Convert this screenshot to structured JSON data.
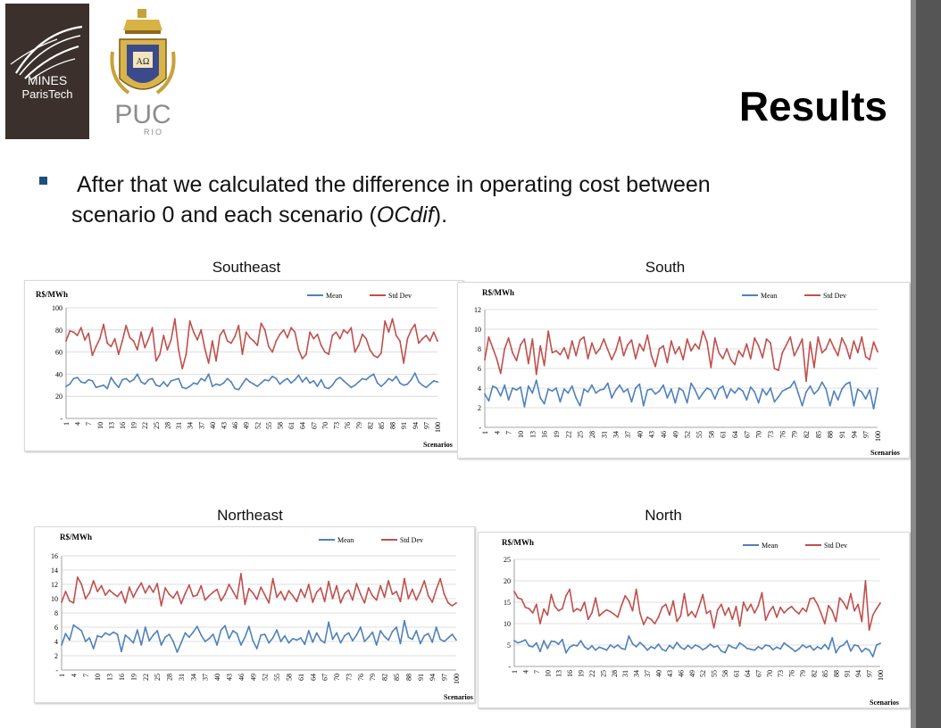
{
  "slide": {
    "title": "Results",
    "bullet_line1": "After that we calculated the difference in operating cost between",
    "bullet_line2_pre": "scenario 0 and each scenario (",
    "bullet_line2_em": "OCdif",
    "bullet_line2_post": ")."
  },
  "logos": {
    "mines_line1": "MINES",
    "mines_line2": "ParisTech",
    "puc_main": "PUC",
    "puc_sub": "RIO",
    "puc_shield_letters": "ΑΩ"
  },
  "colors": {
    "mean": "#4f81bd",
    "std": "#c0504d",
    "grid": "#d4d4d4",
    "logo_bg": "#3b302c"
  },
  "chart_data": [
    {
      "id": "southeast",
      "region": "Southeast",
      "type": "line",
      "ylabel": "R$/MWh",
      "xlabel": "Scenarios",
      "x_range": [
        1,
        100
      ],
      "ylim": [
        0,
        100
      ],
      "yticks": [
        "-",
        "20",
        "40",
        "60",
        "80",
        "100"
      ],
      "ytick_values": [
        0,
        20,
        40,
        60,
        80,
        100
      ],
      "xticks": [
        "1",
        "4",
        "7",
        "10",
        "13",
        "16",
        "19",
        "22",
        "25",
        "28",
        "31",
        "34",
        "37",
        "40",
        "43",
        "46",
        "49",
        "52",
        "55",
        "58",
        "61",
        "64",
        "67",
        "70",
        "73",
        "76",
        "79",
        "82",
        "85",
        "88",
        "91",
        "94",
        "97",
        "100"
      ],
      "grid": "horizontal",
      "legend_position": "top-right",
      "series": [
        {
          "name": "Mean",
          "color": "#4f81bd",
          "values": [
            29,
            31,
            36,
            37,
            33,
            32,
            35,
            34,
            28,
            29,
            30,
            27,
            37,
            32,
            28,
            35,
            36,
            33,
            35,
            40,
            33,
            31,
            35,
            36,
            30,
            29,
            33,
            29,
            34,
            35,
            36,
            28,
            27,
            29,
            32,
            31,
            36,
            34,
            40,
            29,
            31,
            30,
            32,
            36,
            33,
            27,
            26,
            31,
            36,
            33,
            31,
            29,
            32,
            35,
            34,
            38,
            36,
            31,
            34,
            36,
            32,
            35,
            39,
            33,
            37,
            32,
            34,
            29,
            35,
            28,
            27,
            30,
            35,
            37,
            34,
            31,
            28,
            30,
            33,
            36,
            35,
            38,
            40,
            32,
            29,
            32,
            36,
            34,
            38,
            32,
            30,
            31,
            35,
            41,
            33,
            30,
            28,
            31,
            34,
            33
          ]
        },
        {
          "name": "Std Dev",
          "color": "#c0504d",
          "values": [
            70,
            79,
            78,
            75,
            82,
            71,
            77,
            57,
            65,
            72,
            85,
            68,
            65,
            72,
            58,
            70,
            84,
            73,
            70,
            62,
            78,
            64,
            72,
            82,
            52,
            58,
            75,
            62,
            71,
            90,
            62,
            45,
            58,
            88,
            78,
            71,
            80,
            63,
            50,
            70,
            52,
            75,
            80,
            70,
            68,
            74,
            84,
            58,
            78,
            73,
            70,
            66,
            86,
            80,
            65,
            60,
            70,
            76,
            80,
            73,
            82,
            78,
            62,
            54,
            58,
            78,
            72,
            76,
            66,
            60,
            58,
            75,
            78,
            72,
            80,
            77,
            82,
            60,
            66,
            76,
            72,
            62,
            57,
            55,
            59,
            88,
            78,
            90,
            75,
            70,
            50,
            72,
            80,
            85,
            68,
            72,
            75,
            70,
            78,
            70
          ]
        }
      ]
    },
    {
      "id": "south",
      "region": "South",
      "type": "line",
      "ylabel": "R$/MWh",
      "xlabel": "Scenarios",
      "x_range": [
        1,
        100
      ],
      "ylim": [
        0,
        12
      ],
      "yticks": [
        "-",
        "2",
        "4",
        "6",
        "8",
        "10",
        "12"
      ],
      "ytick_values": [
        0,
        2,
        4,
        6,
        8,
        10,
        12
      ],
      "xticks": [
        "1",
        "4",
        "7",
        "10",
        "13",
        "16",
        "19",
        "22",
        "25",
        "28",
        "31",
        "34",
        "37",
        "40",
        "43",
        "46",
        "49",
        "52",
        "55",
        "58",
        "61",
        "64",
        "67",
        "70",
        "73",
        "76",
        "79",
        "82",
        "85",
        "88",
        "91",
        "94",
        "97",
        "100"
      ],
      "grid": "horizontal",
      "legend_position": "top-right",
      "series": [
        {
          "name": "Mean",
          "color": "#4f81bd",
          "values": [
            3.4,
            2.7,
            4.2,
            4.0,
            3.2,
            4.3,
            2.8,
            4.0,
            3.8,
            4.1,
            2.1,
            4.2,
            3.5,
            4.8,
            3.0,
            2.4,
            3.9,
            3.7,
            4.0,
            2.6,
            3.9,
            3.5,
            4.2,
            3.0,
            2.2,
            3.9,
            3.6,
            4.3,
            3.5,
            3.8,
            3.9,
            4.5,
            3.0,
            3.8,
            4.3,
            3.6,
            3.9,
            2.6,
            4.0,
            4.4,
            2.2,
            3.8,
            3.9,
            3.4,
            3.7,
            4.3,
            3.0,
            3.9,
            2.5,
            4.0,
            3.7,
            2.5,
            4.5,
            3.8,
            2.9,
            3.5,
            4.0,
            3.8,
            2.9,
            3.9,
            4.2,
            3.0,
            3.9,
            3.5,
            4.0,
            3.7,
            2.8,
            4.1,
            3.6,
            2.5,
            3.9,
            3.3,
            4.0,
            2.6,
            3.1,
            3.7,
            3.9,
            4.1,
            4.7,
            3.5,
            2.2,
            3.6,
            4.2,
            3.4,
            3.8,
            4.6,
            3.9,
            2.2,
            3.7,
            2.8,
            3.9,
            4.4,
            4.6,
            2.2,
            3.9,
            3.6,
            2.9,
            3.8,
            1.9,
            4.0
          ]
        },
        {
          "name": "Std Dev",
          "color": "#c0504d",
          "values": [
            6.9,
            9.2,
            8.1,
            7.0,
            5.5,
            8.0,
            9.1,
            7.6,
            6.8,
            8.4,
            9.0,
            6.5,
            9.0,
            5.4,
            8.3,
            6.3,
            9.8,
            7.6,
            7.8,
            7.4,
            8.1,
            7.0,
            8.8,
            7.3,
            8.9,
            9.2,
            7.0,
            8.6,
            7.5,
            8.0,
            9.0,
            7.9,
            6.9,
            7.8,
            9.2,
            7.3,
            8.4,
            8.9,
            7.0,
            8.5,
            7.8,
            9.4,
            7.3,
            6.2,
            8.0,
            8.3,
            6.6,
            8.8,
            7.5,
            8.2,
            6.9,
            9.0,
            7.8,
            8.5,
            8.0,
            9.8,
            8.7,
            6.1,
            9.1,
            7.6,
            7.0,
            8.0,
            6.9,
            6.4,
            7.8,
            7.2,
            8.5,
            7.0,
            9.1,
            8.3,
            7.1,
            9.0,
            8.6,
            6.0,
            5.8,
            7.6,
            8.4,
            9.2,
            7.3,
            8.1,
            9.0,
            4.7,
            8.7,
            6.1,
            9.2,
            7.6,
            8.0,
            9.0,
            8.1,
            7.3,
            9.1,
            8.3,
            7.0,
            8.8,
            7.6,
            9.2,
            7.2,
            6.9,
            8.7,
            7.7
          ]
        }
      ]
    },
    {
      "id": "northeast",
      "region": "Northeast",
      "type": "line",
      "ylabel": "R$/MWh",
      "xlabel": "Scenarios",
      "x_range": [
        1,
        100
      ],
      "ylim": [
        0,
        16
      ],
      "yticks": [
        "-",
        "2",
        "4",
        "6",
        "8",
        "10",
        "12",
        "14",
        "16"
      ],
      "ytick_values": [
        0,
        2,
        4,
        6,
        8,
        10,
        12,
        14,
        16
      ],
      "xticks": [
        "1",
        "4",
        "7",
        "10",
        "13",
        "16",
        "19",
        "22",
        "25",
        "28",
        "31",
        "34",
        "37",
        "40",
        "43",
        "46",
        "49",
        "52",
        "55",
        "58",
        "61",
        "64",
        "67",
        "70",
        "73",
        "76",
        "79",
        "82",
        "85",
        "88",
        "91",
        "94",
        "97",
        "100"
      ],
      "grid": "horizontal",
      "legend_position": "top-right",
      "series": [
        {
          "name": "Mean",
          "color": "#4f81bd",
          "values": [
            3.5,
            5.1,
            4.2,
            6.3,
            5.9,
            5.5,
            4.0,
            4.5,
            3.0,
            4.8,
            4.6,
            5.2,
            4.9,
            5.3,
            5.0,
            2.6,
            4.9,
            4.4,
            3.8,
            5.6,
            3.5,
            6.0,
            4.1,
            4.9,
            5.5,
            3.5,
            4.6,
            5.0,
            4.0,
            2.5,
            3.8,
            5.2,
            4.6,
            5.3,
            6.1,
            4.9,
            4.0,
            4.4,
            5.0,
            3.5,
            5.6,
            6.2,
            4.4,
            5.5,
            5.1,
            3.5,
            4.6,
            6.1,
            4.1,
            3.0,
            4.9,
            5.0,
            3.8,
            4.5,
            5.6,
            4.0,
            4.8,
            3.8,
            4.4,
            4.2,
            4.5,
            3.6,
            5.5,
            3.9,
            5.2,
            4.2,
            3.8,
            6.7,
            4.3,
            5.2,
            3.8,
            4.8,
            5.2,
            4.1,
            4.9,
            6.0,
            4.0,
            4.6,
            5.3,
            3.5,
            5.5,
            4.7,
            4.2,
            5.4,
            6.0,
            3.7,
            6.9,
            4.6,
            4.3,
            5.5,
            3.7,
            4.8,
            5.1,
            3.9,
            6.0,
            4.3,
            4.0,
            4.5,
            5.0,
            4.2
          ]
        },
        {
          "name": "Std Dev",
          "color": "#c0504d",
          "values": [
            9.5,
            11.0,
            9.7,
            9.4,
            13.0,
            12.0,
            10.0,
            10.8,
            12.5,
            11.0,
            11.8,
            10.5,
            11.2,
            10.7,
            10.3,
            11.0,
            9.4,
            11.6,
            10.2,
            11.3,
            12.2,
            10.8,
            11.8,
            10.9,
            12.1,
            9.0,
            11.5,
            10.6,
            10.1,
            11.0,
            9.3,
            10.7,
            11.9,
            10.3,
            10.5,
            11.8,
            9.8,
            10.4,
            10.9,
            11.3,
            9.7,
            10.6,
            12.0,
            11.0,
            10.0,
            13.5,
            9.2,
            11.4,
            10.8,
            9.9,
            11.6,
            10.5,
            9.4,
            12.8,
            10.2,
            11.0,
            9.8,
            11.1,
            10.4,
            9.6,
            11.3,
            10.2,
            12.0,
            9.5,
            10.9,
            11.5,
            9.6,
            12.4,
            10.0,
            11.8,
            9.4,
            10.7,
            11.2,
            9.8,
            12.1,
            10.6,
            9.4,
            11.5,
            10.4,
            9.8,
            11.8,
            10.2,
            12.5,
            10.6,
            11.0,
            9.6,
            12.8,
            10.0,
            11.3,
            9.8,
            11.0,
            12.5,
            10.4,
            9.5,
            11.3,
            12.8,
            10.6,
            9.4,
            9.0,
            9.4
          ]
        }
      ]
    },
    {
      "id": "north",
      "region": "North",
      "type": "line",
      "ylabel": "R$/MWh",
      "xlabel": "Scenarios",
      "x_range": [
        1,
        100
      ],
      "ylim": [
        0,
        25
      ],
      "yticks": [
        "-",
        "5",
        "10",
        "15",
        "20",
        "25"
      ],
      "ytick_values": [
        0,
        5,
        10,
        15,
        20,
        25
      ],
      "xticks": [
        "1",
        "4",
        "7",
        "10",
        "13",
        "16",
        "19",
        "22",
        "25",
        "28",
        "31",
        "34",
        "37",
        "40",
        "43",
        "46",
        "49",
        "52",
        "55",
        "58",
        "61",
        "64",
        "67",
        "70",
        "73",
        "76",
        "79",
        "82",
        "85",
        "88",
        "91",
        "94",
        "97",
        "100"
      ],
      "grid": "horizontal",
      "legend_position": "top-right",
      "series": [
        {
          "name": "Mean",
          "color": "#4f81bd",
          "values": [
            6.0,
            5.5,
            5.8,
            6.2,
            4.8,
            4.6,
            5.5,
            3.5,
            6.0,
            4.2,
            5.9,
            5.8,
            5.2,
            6.3,
            3.2,
            4.5,
            5.0,
            4.8,
            6.0,
            4.6,
            4.0,
            4.8,
            3.8,
            4.5,
            4.2,
            3.8,
            5.0,
            4.4,
            5.0,
            4.2,
            4.0,
            7.1,
            5.3,
            4.6,
            5.6,
            4.8,
            3.8,
            4.6,
            4.2,
            5.2,
            4.0,
            3.6,
            4.9,
            4.2,
            5.6,
            4.5,
            4.0,
            4.9,
            4.2,
            5.0,
            4.6,
            3.9,
            4.4,
            5.2,
            4.5,
            4.8,
            3.6,
            3.2,
            5.0,
            4.5,
            4.2,
            5.5,
            4.9,
            4.2,
            4.0,
            3.8,
            4.6,
            4.1,
            5.0,
            4.8,
            3.9,
            4.5,
            4.1,
            5.5,
            4.8,
            4.2,
            3.5,
            4.1,
            5.0,
            4.4,
            4.8,
            3.8,
            4.6,
            4.1,
            5.1,
            4.0,
            6.7,
            3.2,
            4.6,
            5.0,
            6.0,
            3.6,
            5.0,
            4.8,
            3.4,
            4.2,
            3.8,
            2.3,
            5.0,
            5.4
          ]
        },
        {
          "name": "Std Dev",
          "color": "#c0504d",
          "values": [
            17.5,
            16.0,
            15.7,
            13.8,
            13.5,
            12.5,
            14.5,
            10.0,
            13.4,
            12.0,
            16.8,
            14.0,
            13.0,
            13.5,
            16.5,
            18.0,
            12.8,
            13.5,
            13.0,
            15.0,
            11.0,
            12.5,
            16.0,
            11.8,
            12.6,
            13.2,
            12.8,
            12.2,
            11.5,
            14.2,
            16.5,
            15.3,
            13.0,
            18.0,
            12.5,
            9.8,
            11.5,
            11.0,
            10.0,
            11.5,
            13.8,
            14.5,
            12.0,
            15.3,
            10.5,
            11.8,
            17.0,
            11.8,
            12.8,
            11.5,
            14.0,
            16.8,
            12.4,
            13.0,
            9.0,
            13.2,
            14.5,
            12.0,
            13.7,
            11.0,
            14.0,
            9.4,
            15.0,
            13.0,
            14.5,
            12.5,
            14.2,
            17.2,
            10.8,
            12.8,
            14.0,
            11.5,
            13.8,
            12.5,
            13.4,
            14.0,
            13.0,
            12.3,
            13.6,
            12.8,
            15.8,
            16.0,
            14.5,
            12.4,
            10.0,
            14.2,
            13.0,
            10.5,
            16.0,
            15.0,
            13.4,
            17.0,
            13.0,
            14.5,
            10.5,
            20.0,
            8.5,
            12.0,
            13.5,
            14.8
          ]
        }
      ]
    }
  ]
}
